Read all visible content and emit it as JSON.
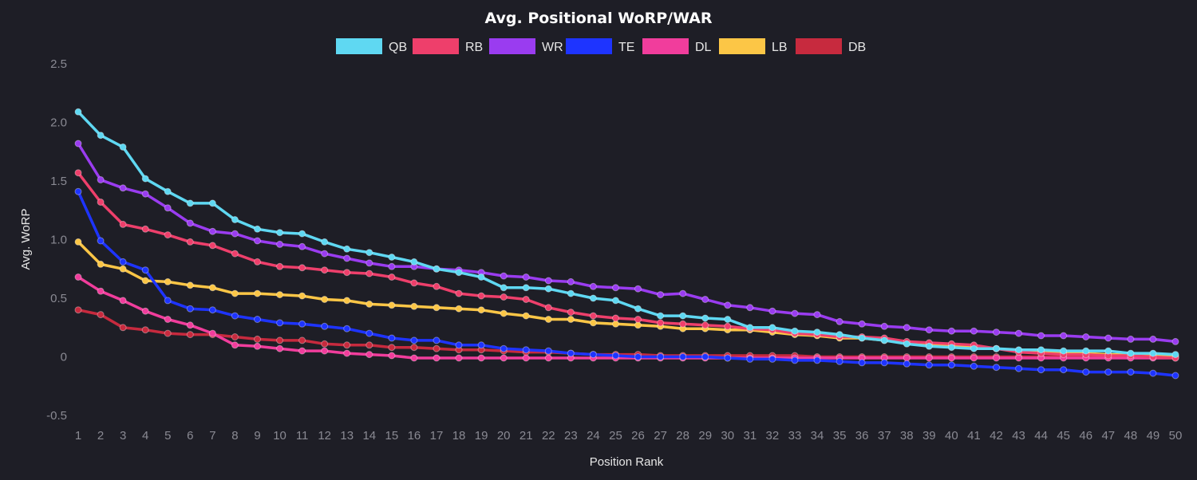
{
  "chart_data": {
    "type": "line",
    "title": "Avg. Positional WoRP/WAR",
    "xlabel": "Position Rank",
    "ylabel": "Avg. WoRP",
    "ylim": [
      -0.5,
      2.5
    ],
    "yticks": [
      "-0.5",
      "0",
      "0.5",
      "1.0",
      "1.5",
      "2.0",
      "2.5"
    ],
    "legend_position": "top-center",
    "grid": false,
    "x": [
      1,
      2,
      3,
      4,
      5,
      6,
      7,
      8,
      9,
      10,
      11,
      12,
      13,
      14,
      15,
      16,
      17,
      18,
      19,
      20,
      21,
      22,
      23,
      24,
      25,
      26,
      27,
      28,
      29,
      30,
      31,
      32,
      33,
      34,
      35,
      36,
      37,
      38,
      39,
      40,
      41,
      42,
      43,
      44,
      45,
      46,
      47,
      48,
      49,
      50
    ],
    "series": [
      {
        "name": "QB",
        "color": "#5fd8f2",
        "values": [
          2.09,
          1.89,
          1.79,
          1.52,
          1.41,
          1.31,
          1.31,
          1.17,
          1.09,
          1.06,
          1.05,
          0.98,
          0.92,
          0.89,
          0.85,
          0.81,
          0.75,
          0.72,
          0.68,
          0.59,
          0.59,
          0.58,
          0.54,
          0.5,
          0.48,
          0.41,
          0.35,
          0.35,
          0.33,
          0.32,
          0.25,
          0.25,
          0.22,
          0.21,
          0.19,
          0.16,
          0.14,
          0.11,
          0.09,
          0.08,
          0.07,
          0.07,
          0.06,
          0.06,
          0.05,
          0.05,
          0.05,
          0.03,
          0.03,
          0.02
        ]
      },
      {
        "name": "RB",
        "color": "#ee3f6b",
        "values": [
          1.57,
          1.32,
          1.13,
          1.09,
          1.04,
          0.98,
          0.95,
          0.88,
          0.81,
          0.77,
          0.76,
          0.74,
          0.72,
          0.71,
          0.68,
          0.63,
          0.6,
          0.54,
          0.52,
          0.51,
          0.49,
          0.42,
          0.38,
          0.35,
          0.33,
          0.32,
          0.29,
          0.28,
          0.27,
          0.26,
          0.24,
          0.23,
          0.2,
          0.19,
          0.17,
          0.17,
          0.16,
          0.13,
          0.12,
          0.11,
          0.1,
          0.07,
          0.04,
          0.03,
          0.02,
          0.02,
          0.01,
          0.01,
          0.0,
          -0.01
        ]
      },
      {
        "name": "WR",
        "color": "#9a3cf0",
        "values": [
          1.82,
          1.51,
          1.44,
          1.39,
          1.27,
          1.14,
          1.07,
          1.05,
          0.99,
          0.96,
          0.94,
          0.88,
          0.84,
          0.8,
          0.77,
          0.77,
          0.75,
          0.74,
          0.72,
          0.69,
          0.68,
          0.65,
          0.64,
          0.6,
          0.59,
          0.58,
          0.53,
          0.54,
          0.49,
          0.44,
          0.42,
          0.39,
          0.37,
          0.36,
          0.3,
          0.28,
          0.26,
          0.25,
          0.23,
          0.22,
          0.22,
          0.21,
          0.2,
          0.18,
          0.18,
          0.17,
          0.16,
          0.15,
          0.15,
          0.13
        ]
      },
      {
        "name": "TE",
        "color": "#1e34ff",
        "values": [
          1.41,
          0.99,
          0.81,
          0.74,
          0.48,
          0.41,
          0.4,
          0.35,
          0.32,
          0.29,
          0.28,
          0.26,
          0.24,
          0.2,
          0.16,
          0.14,
          0.14,
          0.1,
          0.1,
          0.07,
          0.06,
          0.05,
          0.03,
          0.02,
          0.01,
          0.0,
          0.0,
          0.0,
          0.0,
          -0.01,
          -0.02,
          -0.02,
          -0.03,
          -0.03,
          -0.04,
          -0.05,
          -0.05,
          -0.06,
          -0.07,
          -0.07,
          -0.08,
          -0.09,
          -0.1,
          -0.11,
          -0.11,
          -0.13,
          -0.13,
          -0.13,
          -0.14,
          -0.16
        ]
      },
      {
        "name": "DL",
        "color": "#f13d9c",
        "values": [
          0.68,
          0.56,
          0.48,
          0.39,
          0.32,
          0.27,
          0.2,
          0.1,
          0.09,
          0.07,
          0.05,
          0.05,
          0.03,
          0.02,
          0.01,
          -0.01,
          -0.01,
          -0.01,
          -0.01,
          -0.01,
          -0.01,
          -0.01,
          -0.01,
          -0.01,
          -0.01,
          -0.01,
          -0.01,
          -0.01,
          -0.01,
          -0.01,
          -0.01,
          -0.01,
          -0.01,
          -0.01,
          -0.01,
          -0.01,
          -0.01,
          -0.01,
          -0.01,
          -0.01,
          -0.01,
          -0.01,
          -0.01,
          -0.01,
          -0.01,
          -0.01,
          -0.01,
          -0.01,
          -0.01,
          -0.01
        ]
      },
      {
        "name": "LB",
        "color": "#fcc646",
        "values": [
          0.98,
          0.79,
          0.75,
          0.65,
          0.64,
          0.61,
          0.59,
          0.54,
          0.54,
          0.53,
          0.52,
          0.49,
          0.48,
          0.45,
          0.44,
          0.43,
          0.42,
          0.41,
          0.4,
          0.37,
          0.35,
          0.32,
          0.32,
          0.29,
          0.28,
          0.27,
          0.26,
          0.24,
          0.24,
          0.23,
          0.23,
          0.21,
          0.19,
          0.18,
          0.16,
          0.16,
          0.14,
          0.12,
          0.11,
          0.1,
          0.08,
          0.07,
          0.05,
          0.04,
          0.04,
          0.03,
          0.02,
          0.02,
          0.01,
          0.01
        ]
      },
      {
        "name": "DB",
        "color": "#c72a3e",
        "values": [
          0.4,
          0.36,
          0.25,
          0.23,
          0.2,
          0.19,
          0.19,
          0.17,
          0.15,
          0.14,
          0.14,
          0.11,
          0.1,
          0.1,
          0.08,
          0.08,
          0.07,
          0.06,
          0.06,
          0.05,
          0.04,
          0.04,
          0.03,
          0.02,
          0.02,
          0.02,
          0.01,
          0.01,
          0.01,
          0.01,
          0.01,
          0.01,
          0.01,
          0.0,
          0.0,
          0.0,
          0.0,
          0.0,
          0.0,
          0.0,
          0.0,
          0.0,
          0.0,
          0.0,
          0.0,
          0.0,
          0.0,
          0.0,
          0.0,
          0.0
        ]
      }
    ]
  }
}
